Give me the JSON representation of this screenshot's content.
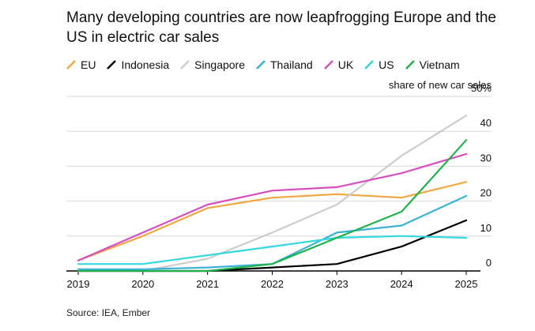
{
  "title": "Many developing countries are now leapfrogging Europe and the US in electric car sales",
  "source": "Source: IEA, Ember",
  "chart_data": {
    "type": "line",
    "x": [
      "2019",
      "2020",
      "2021",
      "2022",
      "2023",
      "2024",
      "2025"
    ],
    "ylabel": "share of new car sales",
    "y_unit_suffix": "%",
    "ylim": [
      0,
      50
    ],
    "yticks": [
      0,
      10,
      20,
      30,
      40,
      50
    ],
    "grid": "horizontal",
    "legend_position": "top",
    "series": [
      {
        "name": "EU",
        "color": "#f0a741",
        "values": [
          3,
          10,
          18,
          21,
          22,
          21,
          25.5
        ]
      },
      {
        "name": "Indonesia",
        "color": "#000000",
        "values": [
          0,
          0,
          0,
          1,
          2,
          7,
          14.5
        ]
      },
      {
        "name": "Singapore",
        "color": "#cccccc",
        "values": [
          0,
          0,
          3.5,
          11,
          19,
          33,
          44.5
        ]
      },
      {
        "name": "Thailand",
        "color": "#3ab1d6",
        "values": [
          0.5,
          0.5,
          1,
          2,
          11,
          13,
          21.5
        ]
      },
      {
        "name": "UK",
        "color": "#d64ec0",
        "values": [
          3,
          11,
          19,
          23,
          24,
          28,
          33.5
        ]
      },
      {
        "name": "US",
        "color": "#35d8dc",
        "values": [
          2,
          2,
          4.5,
          7,
          9.5,
          10,
          9.5
        ]
      },
      {
        "name": "Vietnam",
        "color": "#1fb24b",
        "values": [
          0,
          0,
          0,
          2,
          9.5,
          17,
          37.5
        ]
      }
    ]
  }
}
